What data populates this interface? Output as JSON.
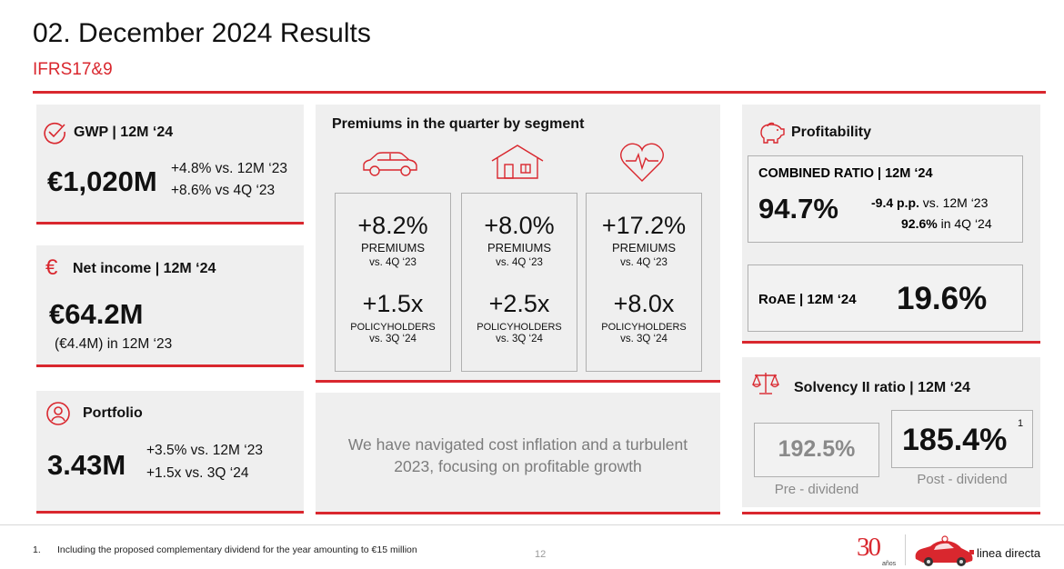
{
  "header": {
    "title": "02. December 2024 Results",
    "subtitle": "IFRS17&9"
  },
  "gwp": {
    "label": "GWP | 12M ‘24",
    "value": "€1,020M",
    "delta1": "+4.8% vs. 12M ‘23",
    "delta2": "+8.6% vs 4Q ‘23"
  },
  "net_income": {
    "label": "Net income | 12M ‘24",
    "value": "€64.2M",
    "prior": "(€4.4M) in 12M ‘23",
    "icon_char": "€"
  },
  "portfolio": {
    "label": "Portfolio",
    "value": "3.43M",
    "delta1": "+3.5% vs. 12M ‘23",
    "delta2": "+1.5x vs. 3Q ‘24"
  },
  "premiums": {
    "title": "Premiums in the quarter by segment",
    "segments": [
      {
        "icon": "car-icon",
        "pct": "+8.2%",
        "premiums_label": "PREMIUMS",
        "premiums_vs": "vs. 4Q ‘23",
        "multiple": "+1.5x",
        "holders_label": "POLICYHOLDERS",
        "holders_vs": "vs. 3Q ‘24"
      },
      {
        "icon": "home-icon",
        "pct": "+8.0%",
        "premiums_label": "PREMIUMS",
        "premiums_vs": "vs. 4Q ‘23",
        "multiple": "+2.5x",
        "holders_label": "POLICYHOLDERS",
        "holders_vs": "vs. 3Q ‘24"
      },
      {
        "icon": "heart-pulse-icon",
        "pct": "+17.2%",
        "premiums_label": "PREMIUMS",
        "premiums_vs": "vs. 4Q ‘23",
        "multiple": "+8.0x",
        "holders_label": "POLICYHOLDERS",
        "holders_vs": "vs. 3Q ‘24"
      }
    ]
  },
  "quote": {
    "line1": "We have navigated cost inflation and a turbulent",
    "line2": "2023, focusing on profitable growth"
  },
  "profitability": {
    "label": "Profitability",
    "combined_ratio": {
      "label": "COMBINED RATIO | 12M ‘24",
      "value": "94.7%",
      "delta1_bold": "-9.4 p.p.",
      "delta1_rest": " vs. 12M ‘23",
      "delta2_bold": "92.6%",
      "delta2_rest": " in 4Q ‘24"
    },
    "roae": {
      "label": "RoAE | 12M ‘24",
      "value": "19.6%"
    }
  },
  "solvency": {
    "label": "Solvency II ratio | 12M ‘24",
    "pre_value": "192.5%",
    "pre_label": "Pre - dividend",
    "post_value": "185.4%",
    "post_footnote": "1",
    "post_label": "Post - dividend"
  },
  "footer": {
    "footnote_num": "1.",
    "footnote_text": "Including the proposed complementary dividend for the year amounting to €15 million",
    "page_number": "12",
    "anniversary_number": "30",
    "anniversary_word": "años",
    "brand": "linea directa"
  },
  "colors": {
    "accent": "#d9272e",
    "panel": "#efefef",
    "border": "#b0b0b0",
    "muted_text": "#8a8a8a"
  }
}
